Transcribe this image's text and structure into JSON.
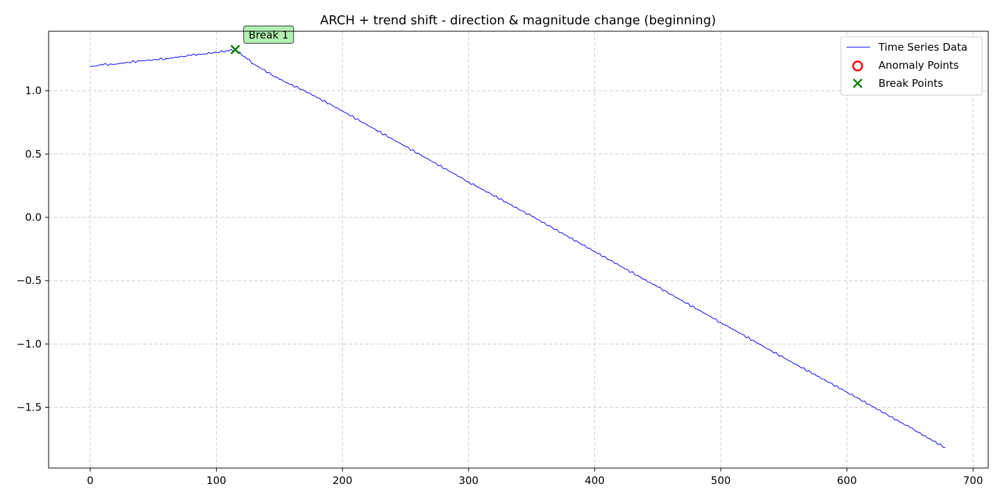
{
  "chart_data": {
    "type": "line",
    "title": "ARCH + trend shift - direction & magnitude change (beginning)",
    "xlabel": "",
    "ylabel": "",
    "xlim": [
      -33,
      712
    ],
    "ylim": [
      -1.98,
      1.47
    ],
    "x_ticks": [
      0,
      100,
      200,
      300,
      400,
      500,
      600,
      700
    ],
    "y_ticks": [
      1.0,
      0.5,
      0.0,
      -0.5,
      -1.0,
      -1.5
    ],
    "y_tick_labels": [
      "1.0",
      "0.5",
      "0.0",
      "−0.5",
      "−1.0",
      "−1.5"
    ],
    "grid": true,
    "legend_position": "top-right",
    "colors": {
      "line": "#0000ff",
      "anomaly": "#ff0000",
      "break": "#008000",
      "annotation_fill": "#b3f0b3"
    },
    "series": [
      {
        "name": "Time Series Data",
        "x": [
          0,
          10,
          20,
          30,
          40,
          50,
          60,
          70,
          80,
          90,
          100,
          110,
          115,
          130,
          150,
          170,
          200,
          250,
          300,
          350,
          400,
          450,
          500,
          550,
          600,
          650,
          678
        ],
        "y": [
          1.19,
          1.205,
          1.21,
          1.225,
          1.235,
          1.245,
          1.255,
          1.265,
          1.28,
          1.29,
          1.305,
          1.315,
          1.325,
          1.21,
          1.09,
          1.0,
          0.84,
          0.56,
          0.28,
          0.01,
          -0.27,
          -0.55,
          -0.83,
          -1.11,
          -1.38,
          -1.66,
          -1.82
        ]
      }
    ],
    "anomaly_points": [],
    "break_points": [
      {
        "x": 115,
        "y": 1.325
      }
    ],
    "annotations": [
      {
        "text": "Break 1",
        "x": 115,
        "y": 1.325
      }
    ],
    "legend": [
      {
        "label": "Time Series Data",
        "marker": "line"
      },
      {
        "label": "Anomaly Points",
        "marker": "circle"
      },
      {
        "label": "Break Points",
        "marker": "x"
      }
    ]
  }
}
